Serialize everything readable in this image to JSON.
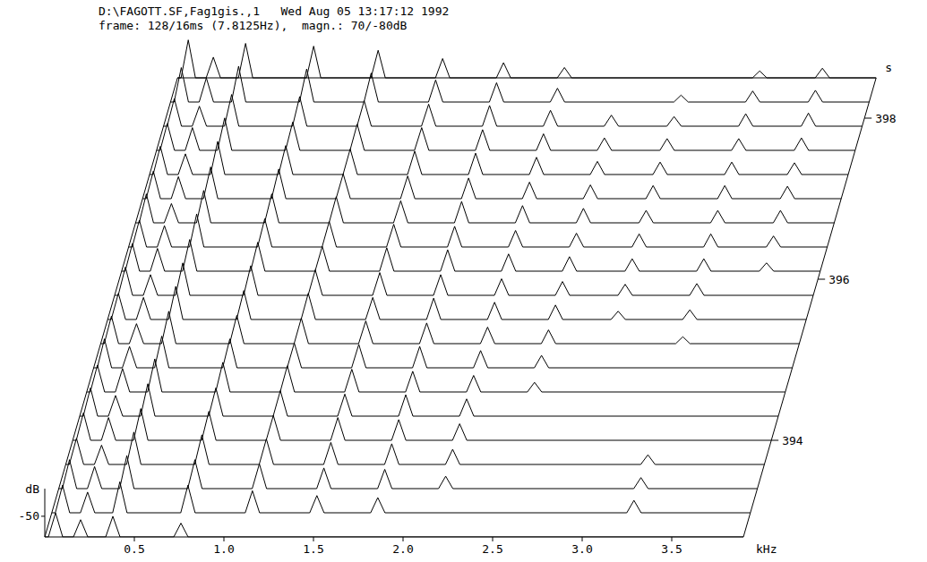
{
  "chart_data": {
    "type": "waterfall",
    "title": "D:\\FAGOTT.SF,Fag1gis.,1   Wed Aug 05 13:17:12 1992",
    "subtitle": "frame: 128/16ms (7.8125Hz),  magn.: 70/-80dB",
    "x_label": "kHz",
    "y_label": "s",
    "z_label": "dB",
    "xlim": [
      0,
      3.9
    ],
    "xticks": [
      0.5,
      {
        "value": 1,
        "label": "1.0"
      },
      1.5,
      {
        "value": 2,
        "label": "2.0"
      },
      2.5,
      {
        "value": 3,
        "label": "3.0"
      },
      3.5
    ],
    "ylim": [
      392.8,
      398.5
    ],
    "yticks": [
      394,
      396,
      398
    ],
    "zlim": [
      -80,
      -10
    ],
    "zticks": [
      -50
    ],
    "times": [
      392.8,
      393.1,
      393.4,
      393.7,
      394.0,
      394.3,
      394.6,
      394.9,
      395.2,
      395.5,
      395.8,
      396.1,
      396.4,
      396.7,
      397.0,
      397.3,
      397.6,
      397.9,
      398.2,
      398.5
    ],
    "partials": [
      {
        "freq": 0.06,
        "values": [
          -45,
          -40,
          -38,
          -42,
          -40,
          -39,
          -41,
          -38,
          -40,
          -42,
          -39,
          -40,
          -41,
          -38,
          -40,
          -39,
          -41,
          -40,
          -30,
          -25
        ]
      },
      {
        "freq": 0.2,
        "values": [
          -55,
          -50,
          -48,
          -52,
          -47,
          -50,
          -46,
          -49,
          -51,
          -48,
          -50,
          -47,
          -49,
          -52,
          -48,
          -50,
          -47,
          -51,
          -45,
          -50
        ]
      },
      {
        "freq": 0.38,
        "values": [
          -50,
          -35,
          -32,
          -33,
          -34,
          -33,
          -32,
          -34,
          -33,
          -32,
          -33,
          -34,
          -32,
          -33,
          -34,
          -32,
          -33,
          -34,
          -28,
          -30
        ]
      },
      {
        "freq": 0.76,
        "values": [
          -60,
          -40,
          -38,
          -37,
          -38,
          -39,
          -37,
          -38,
          -39,
          -38,
          -37,
          -38,
          -39,
          -38,
          -37,
          -38,
          -39,
          -37,
          -32,
          -34
        ]
      },
      {
        "freq": 1.12,
        "values": [
          null,
          -48,
          -44,
          -43,
          -44,
          -43,
          -42,
          -44,
          -43,
          -42,
          -43,
          -44,
          -43,
          -42,
          -44,
          -43,
          -42,
          -43,
          -38,
          -40
        ]
      },
      {
        "freq": 1.48,
        "values": [
          null,
          -55,
          -50,
          -48,
          -47,
          -48,
          -47,
          -46,
          -47,
          -48,
          -47,
          -46,
          -47,
          -48,
          -47,
          -46,
          -47,
          -48,
          -48,
          -52
        ]
      },
      {
        "freq": 1.82,
        "values": [
          null,
          -58,
          -52,
          -50,
          -50,
          -49,
          -50,
          -49,
          -50,
          -49,
          -50,
          -49,
          -50,
          -49,
          -50,
          -49,
          -50,
          -50,
          -52,
          -58
        ]
      },
      {
        "freq": 2.16,
        "values": [
          null,
          null,
          -62,
          -58,
          -56,
          -55,
          -56,
          -55,
          -56,
          -55,
          -56,
          -55,
          -56,
          -55,
          -56,
          -55,
          -56,
          -57,
          -60,
          -65
        ]
      },
      {
        "freq": 2.5,
        "values": [
          null,
          null,
          null,
          null,
          null,
          null,
          -66,
          -62,
          -60,
          -59,
          -60,
          -59,
          -60,
          -59,
          -60,
          -61,
          -62,
          -64,
          null,
          null
        ]
      },
      {
        "freq": 2.85,
        "values": [
          null,
          null,
          null,
          null,
          null,
          null,
          null,
          null,
          null,
          -68,
          -64,
          -62,
          -61,
          -62,
          -61,
          -62,
          -63,
          -66,
          -70,
          null
        ]
      },
      {
        "freq": 3.25,
        "values": [
          null,
          -62,
          -64,
          -66,
          null,
          null,
          null,
          null,
          -70,
          -66,
          -63,
          -62,
          -61,
          -62,
          -61,
          -62,
          -63,
          -62,
          -64,
          -70
        ]
      },
      {
        "freq": 3.6,
        "values": [
          null,
          null,
          null,
          null,
          null,
          null,
          null,
          null,
          null,
          null,
          null,
          -68,
          -64,
          -62,
          -62,
          -63,
          -62,
          -61,
          -63,
          -66
        ]
      }
    ]
  }
}
